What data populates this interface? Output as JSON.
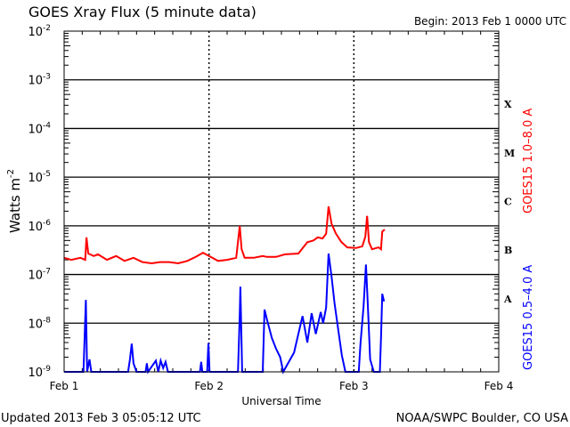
{
  "chart_data": {
    "type": "line",
    "title": "GOES Xray Flux (5 minute data)",
    "begin_label": "Begin:  2013 Feb 1 0000 UTC",
    "xlabel": "Universal Time",
    "ylabel": "Watts m",
    "ylabel_sup": "-2",
    "yscale": "log",
    "ylim": [
      1e-09,
      0.01
    ],
    "xlim_hours": [
      0,
      72
    ],
    "x_unit": "hours since 2013 Feb 1 0000 UTC",
    "x_tick_labels": [
      {
        "hour": 0,
        "label": "Feb 1"
      },
      {
        "hour": 24,
        "label": "Feb 2"
      },
      {
        "hour": 48,
        "label": "Feb 3"
      },
      {
        "hour": 72,
        "label": "Feb 4"
      }
    ],
    "y_tick_labels": [
      {
        "exp": -2,
        "base": "10",
        "sup": "-2"
      },
      {
        "exp": -3,
        "base": "10",
        "sup": "-3"
      },
      {
        "exp": -4,
        "base": "10",
        "sup": "-4"
      },
      {
        "exp": -5,
        "base": "10",
        "sup": "-5"
      },
      {
        "exp": -6,
        "base": "10",
        "sup": "-6"
      },
      {
        "exp": -7,
        "base": "10",
        "sup": "-7"
      },
      {
        "exp": -8,
        "base": "10",
        "sup": "-8"
      },
      {
        "exp": -9,
        "base": "10",
        "sup": "-9"
      }
    ],
    "flare_classes": [
      {
        "label": "X",
        "exp": -3.5
      },
      {
        "label": "M",
        "exp": -4.5
      },
      {
        "label": "C",
        "exp": -5.5
      },
      {
        "label": "B",
        "exp": -6.5
      },
      {
        "label": "A",
        "exp": -7.5
      }
    ],
    "grid": "horizontal lines at each decade; dashed vertical day boundaries",
    "legend_placement": "right, vertical text",
    "series": [
      {
        "name": "GOES15 1.0–8.0 A",
        "color": "#ff0000",
        "points": [
          [
            0,
            2.2e-07
          ],
          [
            1.2,
            2e-07
          ],
          [
            2.7,
            2.2e-07
          ],
          [
            3.5,
            2e-07
          ],
          [
            3.7,
            5.8e-07
          ],
          [
            4.0,
            2.7e-07
          ],
          [
            4.9,
            2.4e-07
          ],
          [
            5.6,
            2.6e-07
          ],
          [
            7.1,
            2e-07
          ],
          [
            8.6,
            2.4e-07
          ],
          [
            10.0,
            1.9e-07
          ],
          [
            11.5,
            2.2e-07
          ],
          [
            13.0,
            1.8e-07
          ],
          [
            14.5,
            1.7e-07
          ],
          [
            15.9,
            1.8e-07
          ],
          [
            17.4,
            1.8e-07
          ],
          [
            18.9,
            1.7e-07
          ],
          [
            20.4,
            1.9e-07
          ],
          [
            21.8,
            2.3e-07
          ],
          [
            23.0,
            2.8e-07
          ],
          [
            24.0,
            2.4e-07
          ],
          [
            25.5,
            1.9e-07
          ],
          [
            27.0,
            2e-07
          ],
          [
            28.5,
            2.2e-07
          ],
          [
            29.1,
            1e-06
          ],
          [
            29.4,
            3.3e-07
          ],
          [
            29.9,
            2.2e-07
          ],
          [
            31.4,
            2.2e-07
          ],
          [
            32.9,
            2.4e-07
          ],
          [
            33.6,
            2.3e-07
          ],
          [
            35.1,
            2.3e-07
          ],
          [
            36.6,
            2.6e-07
          ],
          [
            38.8,
            2.7e-07
          ],
          [
            40.3,
            4.6e-07
          ],
          [
            41.3,
            5e-07
          ],
          [
            42.0,
            5.8e-07
          ],
          [
            42.8,
            5.5e-07
          ],
          [
            43.4,
            6.9e-07
          ],
          [
            43.8,
            2.5e-06
          ],
          [
            44.3,
            1.1e-06
          ],
          [
            45.0,
            7e-07
          ],
          [
            45.9,
            4.7e-07
          ],
          [
            46.9,
            3.6e-07
          ],
          [
            48.4,
            3.5e-07
          ],
          [
            49.4,
            3.8e-07
          ],
          [
            49.9,
            6e-07
          ],
          [
            50.2,
            1.6e-06
          ],
          [
            50.5,
            4.6e-07
          ],
          [
            51.0,
            3.3e-07
          ],
          [
            52.1,
            3.6e-07
          ],
          [
            52.5,
            3.3e-07
          ],
          [
            52.7,
            7.6e-07
          ],
          [
            53.1,
            8.4e-07
          ]
        ]
      },
      {
        "name": "GOES15 0.5–4.0 A",
        "color": "#0000ff",
        "points": [
          [
            0,
            1e-09
          ],
          [
            3.2,
            1e-09
          ],
          [
            3.4,
            5e-09
          ],
          [
            3.6,
            3e-08
          ],
          [
            3.8,
            1e-09
          ],
          [
            4.2,
            1.8e-09
          ],
          [
            4.5,
            1e-09
          ],
          [
            10.6,
            1e-09
          ],
          [
            10.9,
            1.8e-09
          ],
          [
            11.2,
            3.8e-09
          ],
          [
            11.5,
            1.5e-09
          ],
          [
            12.0,
            1e-09
          ],
          [
            13.5,
            1e-09
          ],
          [
            13.7,
            1.5e-09
          ],
          [
            13.9,
            1e-09
          ],
          [
            15.2,
            1.7e-09
          ],
          [
            15.6,
            1e-09
          ],
          [
            16.0,
            1.7e-09
          ],
          [
            16.4,
            1.2e-09
          ],
          [
            16.8,
            1.6e-09
          ],
          [
            17.2,
            1e-09
          ],
          [
            22.5,
            1e-09
          ],
          [
            22.7,
            1.6e-09
          ],
          [
            22.9,
            1e-09
          ],
          [
            23.7,
            1e-09
          ],
          [
            23.9,
            3.9e-09
          ],
          [
            24.1,
            1e-09
          ],
          [
            28.8,
            1e-09
          ],
          [
            29.1,
            1.5e-08
          ],
          [
            29.2,
            5.6e-08
          ],
          [
            29.5,
            1e-09
          ],
          [
            32.9,
            1e-09
          ],
          [
            33.2,
            1.9e-08
          ],
          [
            33.6,
            1.2e-08
          ],
          [
            34.4,
            5e-09
          ],
          [
            35.1,
            3e-09
          ],
          [
            35.8,
            2e-09
          ],
          [
            36.3,
            1e-09
          ],
          [
            38.1,
            2.5e-09
          ],
          [
            38.8,
            6e-09
          ],
          [
            39.5,
            1.4e-08
          ],
          [
            40.3,
            4e-09
          ],
          [
            41.0,
            1.6e-08
          ],
          [
            41.7,
            6e-09
          ],
          [
            42.5,
            1.7e-08
          ],
          [
            42.9,
            1e-08
          ],
          [
            43.4,
            2.1e-08
          ],
          [
            43.8,
            2.7e-07
          ],
          [
            44.3,
            9e-08
          ],
          [
            44.8,
            2.6e-08
          ],
          [
            45.4,
            7.5e-09
          ],
          [
            46.0,
            2.2e-09
          ],
          [
            46.6,
            1e-09
          ],
          [
            48.8,
            1e-09
          ],
          [
            49.1,
            3.9e-09
          ],
          [
            49.6,
            2.2e-08
          ],
          [
            50.0,
            1.6e-07
          ],
          [
            50.3,
            2.6e-08
          ],
          [
            50.7,
            1.8e-09
          ],
          [
            51.3,
            1e-09
          ],
          [
            52.3,
            1e-09
          ],
          [
            52.5,
            5e-09
          ],
          [
            52.7,
            4e-08
          ],
          [
            53.0,
            2.8e-08
          ]
        ]
      }
    ]
  },
  "footer": {
    "updated": "Updated 2013 Feb  3 05:05:12 UTC",
    "credit": "NOAA/SWPC Boulder, CO USA"
  }
}
